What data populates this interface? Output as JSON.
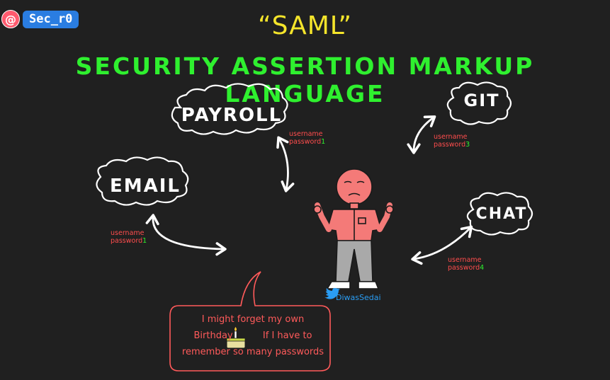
{
  "handle": {
    "at": "@",
    "name": "Sec_r0"
  },
  "title": "“SAML”",
  "subtitle": "SECURITY ASSERTION MARKUP LANGUAGE",
  "clouds": {
    "payroll": "PAYROLL",
    "email": "EMAIL",
    "git": "GIT",
    "chat": "CHAT"
  },
  "credentials": {
    "payroll": {
      "username": "username",
      "password": "password",
      "num": "1"
    },
    "email": {
      "username": "username",
      "password": "password",
      "num": "1"
    },
    "git": {
      "username": "username",
      "password": "password",
      "num": "3"
    },
    "chat": {
      "username": "username",
      "password": "password",
      "num": "4"
    }
  },
  "artist": "DiwasSedai",
  "speech": {
    "line1": "I might forget my own",
    "line2_a": "Birthday",
    "line2_b": "If I have to",
    "line3": "remember so many passwords"
  },
  "colors": {
    "background": "#202020",
    "title": "#f5e52b",
    "subtitle": "#2ff02f",
    "credential_label": "#ff4d4d",
    "speech": "#ff5a5a",
    "handle_badge": "#2a7de1",
    "person_shirt": "#f47a78",
    "person_pants": "#a9a9a9"
  }
}
